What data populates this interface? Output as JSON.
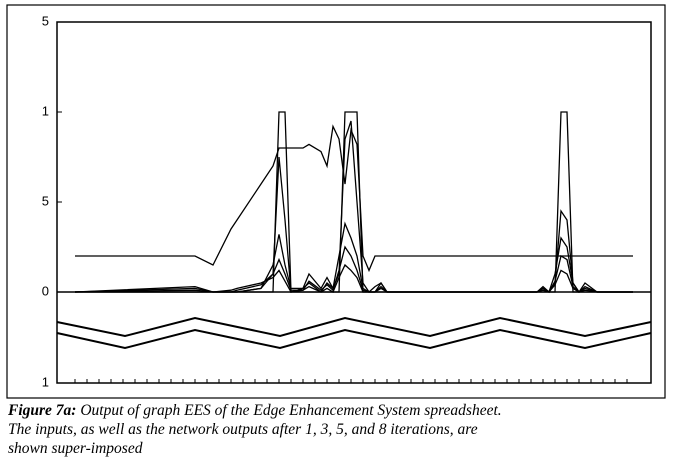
{
  "chart_data": {
    "type": "line",
    "caption_label": "Figure 7a:",
    "caption": [
      "Output of graph EES of the Edge Enhancement System spreadsheet.",
      "The inputs, as well as the network outputs after 1, 3, 5, and 8 iterations, are",
      "shown super-imposed"
    ],
    "x": [
      3,
      23,
      26,
      29,
      30,
      34,
      36,
      37,
      38,
      39,
      41,
      42,
      44,
      45,
      46,
      47,
      48,
      49,
      50,
      51,
      52,
      53,
      54,
      55,
      56,
      58,
      80,
      81,
      82,
      83,
      84,
      85,
      86,
      87,
      88,
      90,
      96
    ],
    "series": [
      {
        "color": "#000000",
        "values": [
          0.2,
          0.2,
          0.15,
          0.35,
          0.4,
          0.6,
          0.7,
          0.8,
          0.8,
          0.8,
          0.8,
          0.82,
          0.78,
          0.7,
          0.92,
          0.85,
          0.6,
          0.9,
          0.82,
          0.2,
          0.12,
          0.2,
          0.2,
          0.2,
          0.2,
          0.2,
          0.2,
          0.2,
          0.2,
          0.2,
          0.2,
          0.2,
          0.2,
          0.2,
          0.2,
          0.2,
          0.2
        ]
      },
      {
        "color": "#000000",
        "values": [
          0,
          0,
          0,
          0,
          0,
          0,
          0,
          1,
          1,
          0,
          0,
          0,
          0,
          0,
          0,
          0,
          1,
          1,
          1,
          0,
          0,
          0,
          0,
          0,
          0,
          0,
          0,
          0,
          0,
          0,
          1,
          1,
          0,
          0,
          0,
          0,
          0
        ]
      },
      {
        "color": "#000000",
        "values": [
          0,
          0.03,
          0,
          0,
          0,
          0.02,
          0.1,
          0.75,
          0.4,
          0,
          0.02,
          0.05,
          0,
          0.05,
          0.02,
          0.1,
          0.85,
          0.95,
          0.5,
          0.05,
          0,
          0.03,
          0.05,
          0,
          0,
          0,
          0,
          0.02,
          0,
          0.05,
          0.45,
          0.4,
          0.05,
          0,
          0.03,
          0,
          0
        ]
      },
      {
        "color": "#000000",
        "values": [
          0,
          0.02,
          0,
          0,
          0,
          0.02,
          0.15,
          0.32,
          0.15,
          0.02,
          0.02,
          0.1,
          0.02,
          0.08,
          0.02,
          0.2,
          0.38,
          0.3,
          0.2,
          0.02,
          0,
          0,
          0.05,
          0,
          0,
          0,
          0,
          0.03,
          0,
          0.1,
          0.3,
          0.25,
          0.05,
          0,
          0.05,
          0,
          0
        ]
      },
      {
        "color": "#000000",
        "values": [
          0,
          0.01,
          0,
          0,
          0.01,
          0.04,
          0.1,
          0.18,
          0.1,
          0.01,
          0.01,
          0.06,
          0.01,
          0.04,
          0.01,
          0.12,
          0.25,
          0.2,
          0.12,
          0.01,
          0,
          0,
          0.03,
          0,
          0,
          0,
          0,
          0.02,
          0,
          0.06,
          0.2,
          0.18,
          0.03,
          0,
          0.02,
          0,
          0
        ]
      },
      {
        "color": "#000000",
        "values": [
          0,
          0,
          0,
          0.01,
          0.02,
          0.05,
          0.08,
          0.12,
          0.06,
          0,
          0.01,
          0.03,
          0,
          0.02,
          0,
          0.08,
          0.15,
          0.12,
          0.08,
          0,
          0,
          0,
          0.02,
          0,
          0,
          0,
          0,
          0.01,
          0,
          0.04,
          0.12,
          0.1,
          0.02,
          0,
          0.01,
          0,
          0
        ]
      }
    ],
    "xlim": [
      0,
      99
    ],
    "xticks": [
      3,
      5,
      7,
      9,
      11,
      13,
      15,
      17,
      19,
      21,
      23,
      25,
      27,
      29,
      31,
      33,
      35,
      37,
      39,
      41,
      43,
      45,
      47,
      49,
      51,
      53,
      55,
      57,
      59,
      61,
      63,
      65,
      67,
      69,
      71,
      73,
      75,
      77,
      79,
      81,
      83,
      85,
      87,
      89,
      91,
      93,
      95
    ],
    "ylim": [
      -1,
      1.5
    ],
    "yticks": [
      {
        "value": 1.5,
        "label": "5"
      },
      1,
      {
        "value": 0.5,
        "label": "5"
      },
      0,
      {
        "value": -1,
        "label": "1"
      }
    ]
  }
}
